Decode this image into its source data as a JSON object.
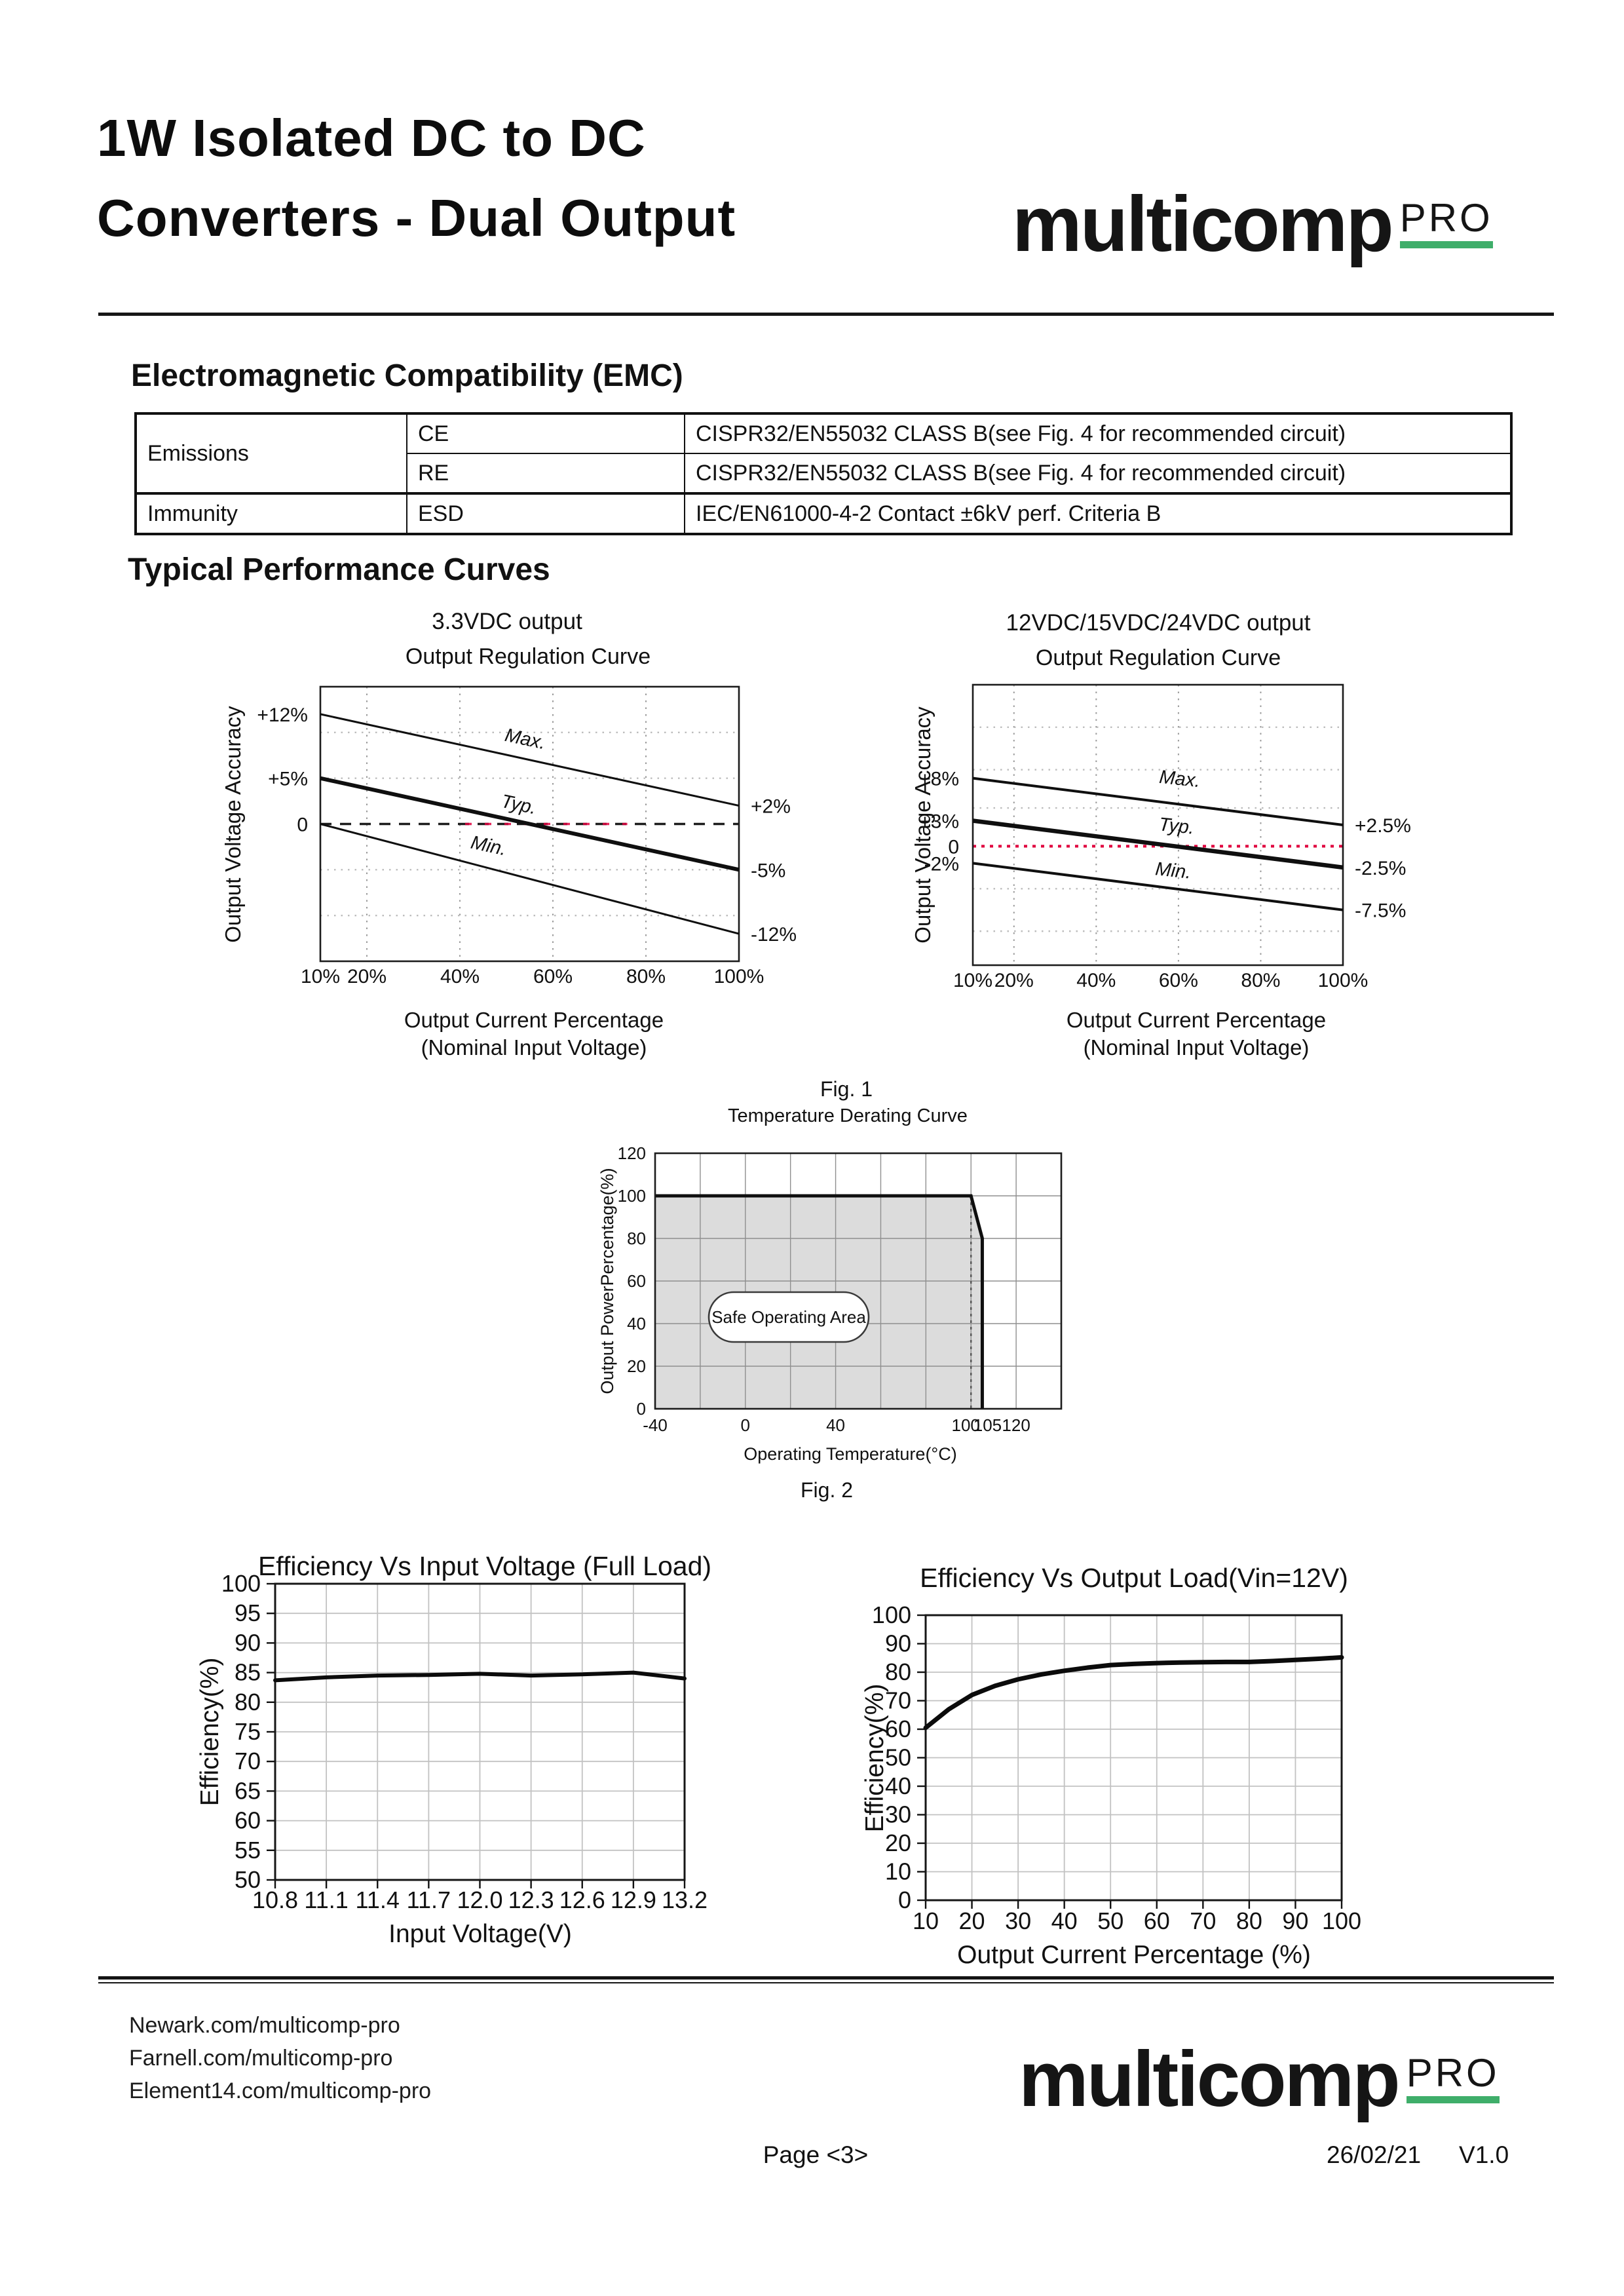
{
  "colors": {
    "logo_green": "#3fae6a",
    "accent_red": "#e0003e",
    "safe_fill": "#dcdcdc"
  },
  "header": {
    "title_line1": "1W Isolated DC to DC",
    "title_line2": "Converters - Dual Output"
  },
  "logo": {
    "brand": "multicomp",
    "sub": "PRO"
  },
  "emc": {
    "heading": "Electromagnetic Compatibility (EMC)",
    "table": {
      "rows": [
        {
          "group": "Emissions",
          "type": "CE",
          "value": "CISPR32/EN55032 CLASS B(see Fig. 4 for recommended circuit)"
        },
        {
          "group": "Emissions",
          "type": "RE",
          "value": "CISPR32/EN55032 CLASS B(see Fig. 4 for recommended circuit)"
        },
        {
          "group": "Immunity",
          "type": "ESD",
          "value": "IEC/EN61000-4-2 Contact ±6kV perf. Criteria B"
        }
      ]
    }
  },
  "sections": {
    "curves_heading": "Typical Performance Curves"
  },
  "figures": {
    "fig1": "Fig. 1",
    "fig2": "Fig. 2"
  },
  "chart_data": [
    {
      "id": "reg33",
      "type": "line",
      "title": "3.3VDC output",
      "subtitle": "Output Regulation Curve",
      "xlabel_line1": "Output Current Percentage",
      "xlabel_line2": "(Nominal Input Voltage)",
      "ylabel": "Output Voltage Accuracy",
      "xlim": [
        10,
        100
      ],
      "ylim_note": "plot shows +15% to -15%",
      "grid_x": [
        20,
        40,
        60,
        80
      ],
      "grid_y": [
        10,
        5,
        -5,
        -10
      ],
      "zero_value": 0,
      "zero_red_span": [
        40,
        76
      ],
      "x_ticks": [
        {
          "v": 10,
          "label": "10%"
        },
        {
          "v": 20,
          "label": "20%"
        },
        {
          "v": 40,
          "label": "40%"
        },
        {
          "v": 60,
          "label": "60%"
        },
        {
          "v": 80,
          "label": "80%"
        },
        {
          "v": 100,
          "label": "100%"
        }
      ],
      "left_labels": [
        {
          "v": 12,
          "label": "+12%"
        },
        {
          "v": 5,
          "label": "+5%"
        },
        {
          "v": 0,
          "label": "0"
        }
      ],
      "right_labels": [
        {
          "v": 2,
          "label": "+2%"
        },
        {
          "v": -5,
          "label": "-5%"
        },
        {
          "v": -12,
          "label": "-12%"
        }
      ],
      "series": [
        {
          "name": "Max.",
          "x": [
            10,
            100
          ],
          "y": [
            12,
            2
          ],
          "weight": "thin"
        },
        {
          "name": "Typ.",
          "x": [
            10,
            100
          ],
          "y": [
            5,
            -5
          ],
          "weight": "thick"
        },
        {
          "name": "Min.",
          "x": [
            10,
            100
          ],
          "y": [
            0,
            -12
          ],
          "weight": "thin"
        }
      ]
    },
    {
      "id": "reg12",
      "type": "line",
      "title": "12VDC/15VDC/24VDC output",
      "subtitle": "Output Regulation Curve",
      "xlabel_line1": "Output Current Percentage",
      "xlabel_line2": "(Nominal Input Voltage)",
      "ylabel": "Output Voltage Accuracy",
      "xlim": [
        10,
        100
      ],
      "grid_x": [
        20,
        40,
        60,
        80
      ],
      "grid_y": [
        14,
        9,
        4.5,
        -5,
        -10
      ],
      "zero_value": 0,
      "x_ticks": [
        {
          "v": 10,
          "label": "10%"
        },
        {
          "v": 20,
          "label": "20%"
        },
        {
          "v": 40,
          "label": "40%"
        },
        {
          "v": 60,
          "label": "60%"
        },
        {
          "v": 80,
          "label": "80%"
        },
        {
          "v": 100,
          "label": "100%"
        }
      ],
      "left_labels": [
        {
          "v": 8,
          "label": "+8%"
        },
        {
          "v": 3,
          "label": "+3%"
        },
        {
          "v": 0,
          "label": "0"
        },
        {
          "v": -2,
          "label": "-2%"
        }
      ],
      "right_labels": [
        {
          "v": 2.5,
          "label": "+2.5%"
        },
        {
          "v": -2.5,
          "label": "-2.5%"
        },
        {
          "v": -7.5,
          "label": "-7.5%"
        }
      ],
      "series": [
        {
          "name": "Max.",
          "x": [
            10,
            100
          ],
          "y": [
            8,
            2.5
          ],
          "weight": "thin"
        },
        {
          "name": "Typ.",
          "x": [
            10,
            100
          ],
          "y": [
            3,
            -2.5
          ],
          "weight": "thick"
        },
        {
          "name": "Min.",
          "x": [
            10,
            100
          ],
          "y": [
            -2,
            -7.5
          ],
          "weight": "thin"
        }
      ]
    },
    {
      "id": "derating",
      "type": "area",
      "title": "Temperature Derating Curve",
      "xlabel": "Operating Temperature(°C)",
      "ylabel": "Output PowerPercentage(%)",
      "xlim": [
        -40,
        140
      ],
      "ylim": [
        0,
        120
      ],
      "grid_step": 20,
      "x_ticks": [
        {
          "v": -40,
          "label": "-40"
        },
        {
          "v": 0,
          "label": "0"
        },
        {
          "v": 40,
          "label": "40"
        },
        {
          "v": 100,
          "label": "100"
        },
        {
          "v": 105,
          "label": "105"
        },
        {
          "v": 120,
          "label": "120"
        }
      ],
      "y_ticks": [
        {
          "v": 0,
          "label": "0"
        },
        {
          "v": 20,
          "label": "20"
        },
        {
          "v": 40,
          "label": "40"
        },
        {
          "v": 60,
          "label": "60"
        },
        {
          "v": 80,
          "label": "80"
        },
        {
          "v": 100,
          "label": "100"
        },
        {
          "v": 120,
          "label": "120"
        }
      ],
      "safe_area": [
        [
          -40,
          0
        ],
        [
          -40,
          100
        ],
        [
          100,
          100
        ],
        [
          105,
          80
        ],
        [
          105,
          0
        ]
      ],
      "boundary": [
        [
          -40,
          100
        ],
        [
          100,
          100
        ],
        [
          105,
          80
        ],
        [
          105,
          0
        ]
      ],
      "dotted_vline_x": 100,
      "area_label": "Safe Operating Area"
    },
    {
      "id": "eff_vin",
      "type": "line",
      "title": "Efficiency Vs Input Voltage (Full Load)",
      "xlabel": "Input Voltage(V)",
      "ylabel": "Efficiency(%)",
      "xlim": [
        10.8,
        13.2
      ],
      "ylim": [
        50,
        100
      ],
      "x_ticks": [
        {
          "v": 10.8,
          "label": "10.8"
        },
        {
          "v": 11.1,
          "label": "11.1"
        },
        {
          "v": 11.4,
          "label": "11.4"
        },
        {
          "v": 11.7,
          "label": "11.7"
        },
        {
          "v": 12.0,
          "label": "12.0"
        },
        {
          "v": 12.3,
          "label": "12.3"
        },
        {
          "v": 12.6,
          "label": "12.6"
        },
        {
          "v": 12.9,
          "label": "12.9"
        },
        {
          "v": 13.2,
          "label": "13.2"
        }
      ],
      "y_ticks": [
        {
          "v": 100,
          "label": "100"
        },
        {
          "v": 95,
          "label": "95"
        },
        {
          "v": 90,
          "label": "90"
        },
        {
          "v": 85,
          "label": "85"
        },
        {
          "v": 80,
          "label": "80"
        },
        {
          "v": 75,
          "label": "75"
        },
        {
          "v": 70,
          "label": "70"
        },
        {
          "v": 65,
          "label": "65"
        },
        {
          "v": 60,
          "label": "60"
        },
        {
          "v": 55,
          "label": "55"
        },
        {
          "v": 50,
          "label": "50"
        }
      ],
      "series": [
        {
          "name": "efficiency",
          "x": [
            10.8,
            11.1,
            11.4,
            11.7,
            12.0,
            12.3,
            12.6,
            12.9,
            13.2
          ],
          "y": [
            83.7,
            84.2,
            84.5,
            84.6,
            84.8,
            84.5,
            84.7,
            85.0,
            84.0
          ]
        }
      ]
    },
    {
      "id": "eff_load",
      "type": "line",
      "title": "Efficiency Vs Output Load(Vin=12V)",
      "xlabel": "Output Current Percentage (%)",
      "ylabel": "Efficiency(%)",
      "xlim": [
        10,
        100
      ],
      "ylim": [
        0,
        100
      ],
      "x_ticks": [
        {
          "v": 10,
          "label": "10"
        },
        {
          "v": 20,
          "label": "20"
        },
        {
          "v": 30,
          "label": "30"
        },
        {
          "v": 40,
          "label": "40"
        },
        {
          "v": 50,
          "label": "50"
        },
        {
          "v": 60,
          "label": "60"
        },
        {
          "v": 70,
          "label": "70"
        },
        {
          "v": 80,
          "label": "80"
        },
        {
          "v": 90,
          "label": "90"
        },
        {
          "v": 100,
          "label": "100"
        }
      ],
      "y_ticks": [
        {
          "v": 100,
          "label": "100"
        },
        {
          "v": 90,
          "label": "90"
        },
        {
          "v": 80,
          "label": "80"
        },
        {
          "v": 70,
          "label": "70"
        },
        {
          "v": 60,
          "label": "60"
        },
        {
          "v": 50,
          "label": "50"
        },
        {
          "v": 40,
          "label": "40"
        },
        {
          "v": 30,
          "label": "30"
        },
        {
          "v": 20,
          "label": "20"
        },
        {
          "v": 10,
          "label": "10"
        },
        {
          "v": 0,
          "label": "0"
        }
      ],
      "series": [
        {
          "name": "efficiency",
          "x": [
            10,
            15,
            20,
            25,
            30,
            35,
            40,
            45,
            50,
            55,
            60,
            65,
            70,
            75,
            80,
            85,
            90,
            95,
            100
          ],
          "y": [
            60.5,
            67,
            72,
            75.2,
            77.5,
            79.2,
            80.5,
            81.6,
            82.5,
            82.9,
            83.2,
            83.4,
            83.5,
            83.6,
            83.6,
            83.9,
            84.3,
            84.7,
            85.2
          ]
        }
      ]
    }
  ],
  "footer": {
    "links": [
      "Newark.com/multicomp-pro",
      "Farnell.com/multicomp-pro",
      "Element14.com/multicomp-pro"
    ],
    "page": "Page <3>",
    "date": "26/02/21",
    "version": "V1.0"
  }
}
